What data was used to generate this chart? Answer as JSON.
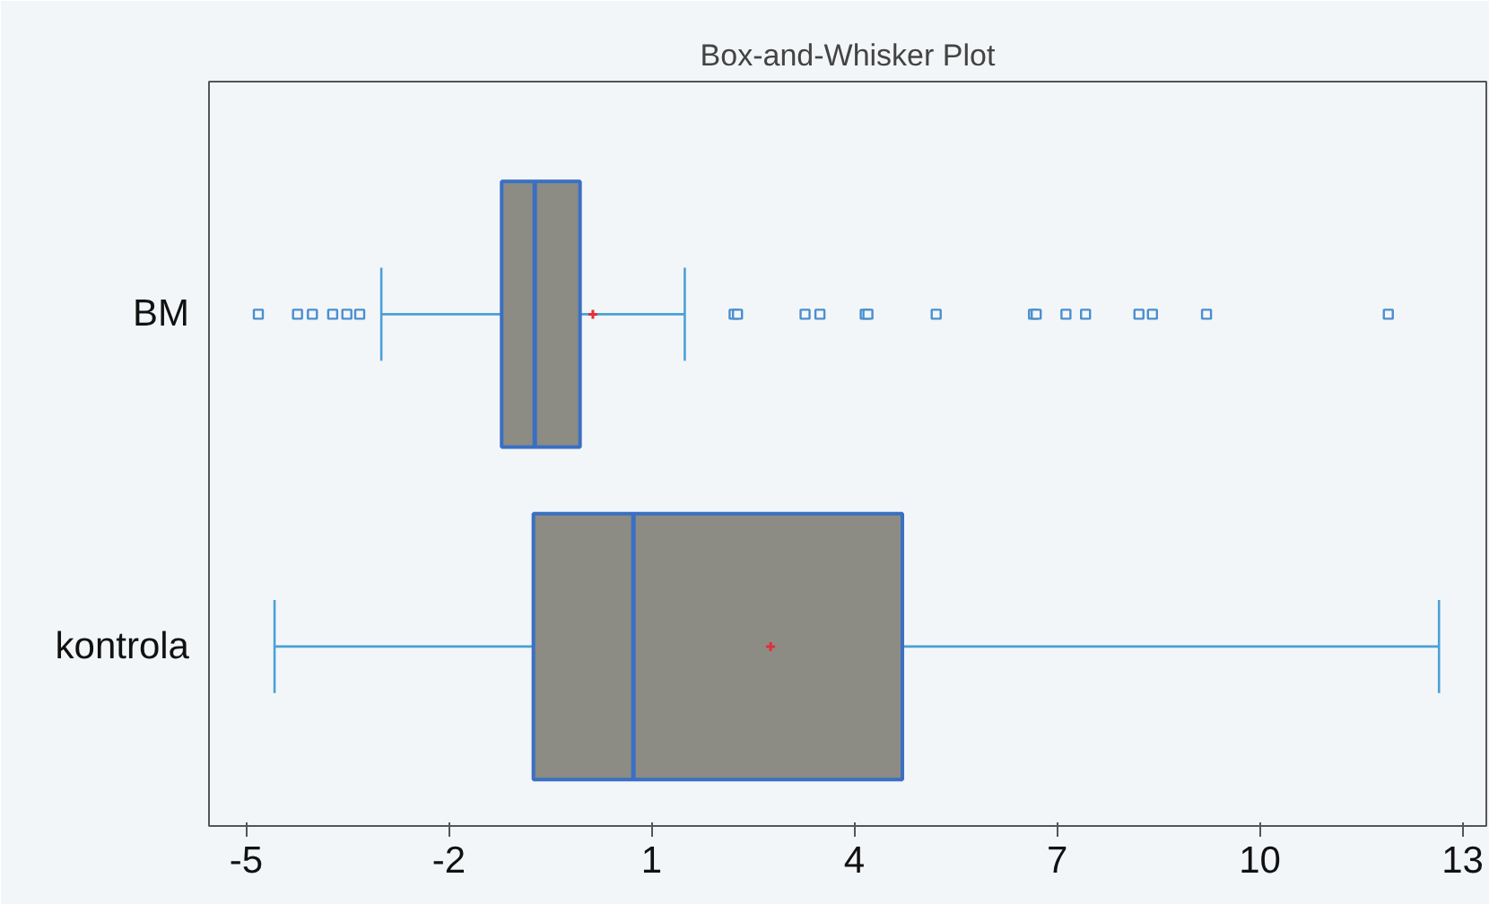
{
  "chart_data": {
    "type": "box",
    "title": "Box-and-Whisker Plot",
    "orientation": "horizontal",
    "categories": [
      "BM",
      "kontrola"
    ],
    "boxes": [
      {
        "low": -3.0,
        "q1": -1.22,
        "median": -0.73,
        "q3": -0.06,
        "high": 1.49,
        "mean": 0.13,
        "outliers": [
          -4.82,
          -4.24,
          -4.02,
          -3.72,
          -3.51,
          -3.32,
          2.22,
          2.27,
          3.27,
          3.49,
          4.16,
          4.2,
          5.21,
          6.65,
          6.69,
          7.13,
          7.42,
          8.21,
          8.41,
          9.21,
          11.9
        ]
      },
      {
        "low": -4.58,
        "q1": -0.75,
        "median": 0.73,
        "q3": 4.71,
        "high": 12.65,
        "mean": 2.76
      }
    ],
    "color": "#8c8c84",
    "xlim": [
      -5.55,
      13.35
    ],
    "xticks": [
      -5,
      -2,
      1,
      4,
      7,
      10,
      13
    ],
    "grid": false
  }
}
